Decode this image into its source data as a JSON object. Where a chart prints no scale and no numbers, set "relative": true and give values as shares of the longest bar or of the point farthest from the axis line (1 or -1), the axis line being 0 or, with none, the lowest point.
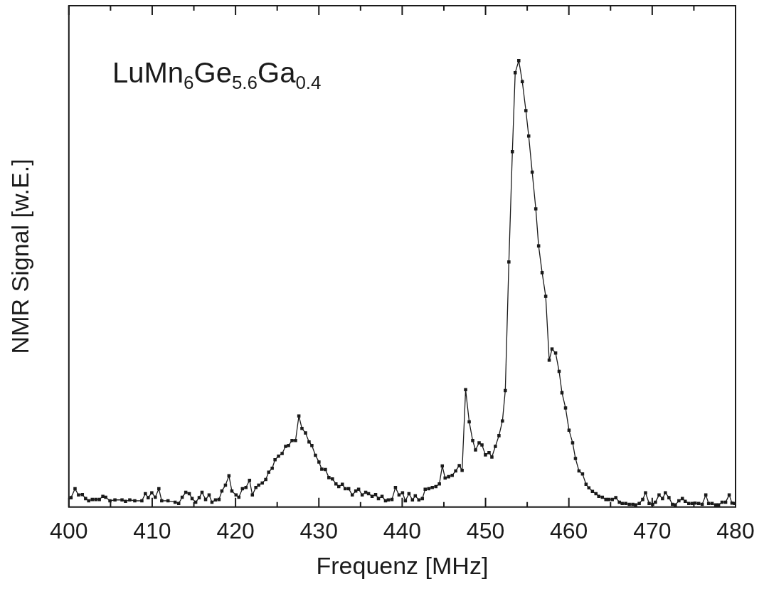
{
  "chart_data": {
    "type": "line",
    "xlabel": "Frequenz [MHz]",
    "ylabel": "NMR Signal [w.E.]",
    "relative": true,
    "marker": "square",
    "line_style": "solid",
    "legend": false,
    "annotations": [
      "LuMn$_{6}$Ge$_{5.6}$Ga$_{0.4}$"
    ],
    "xlim": [
      400,
      480
    ],
    "xticks": [
      400,
      {
        "value": 405,
        "label": null
      },
      410,
      {
        "value": 415,
        "label": null
      },
      420,
      {
        "value": 425,
        "label": null
      },
      430,
      {
        "value": 435,
        "label": null
      },
      440,
      {
        "value": 445,
        "label": null
      },
      450,
      {
        "value": 455,
        "label": null
      },
      460,
      {
        "value": 465,
        "label": null
      },
      470,
      {
        "value": 475,
        "label": null
      },
      480
    ],
    "series": [
      {
        "color": "#1a1a1a",
        "x": [
          400.26,
          400.74,
          401.16,
          401.62,
          402.01,
          402.38,
          402.81,
          403.23,
          403.66,
          404.08,
          404.42,
          404.93,
          405.53,
          406.38,
          406.8,
          407.31,
          407.91,
          408.76,
          409.18,
          409.52,
          409.95,
          410.37,
          410.8,
          411.14,
          411.9,
          412.75,
          413.18,
          413.6,
          414.03,
          414.45,
          414.79,
          415.22,
          415.64,
          415.98,
          416.41,
          416.83,
          417.17,
          417.6,
          418.02,
          418.36,
          418.79,
          419.21,
          419.56,
          420.06,
          420.4,
          420.83,
          421.25,
          421.68,
          422.02,
          422.44,
          422.78,
          423.21,
          423.63,
          423.98,
          424.4,
          424.74,
          425.16,
          425.59,
          426.01,
          426.36,
          426.78,
          427.2,
          427.6,
          427.97,
          428.4,
          428.82,
          429.16,
          429.59,
          430.01,
          430.35,
          430.78,
          431.2,
          431.63,
          432.05,
          432.39,
          432.82,
          433.16,
          433.58,
          434.01,
          434.43,
          434.77,
          435.2,
          435.62,
          435.96,
          436.39,
          436.81,
          437.15,
          437.58,
          438,
          438.34,
          438.77,
          439.19,
          439.62,
          440.04,
          440.38,
          440.81,
          441.23,
          441.57,
          442,
          442.42,
          442.76,
          443.19,
          443.61,
          444.04,
          444.46,
          444.81,
          445.15,
          445.57,
          446,
          446.42,
          446.85,
          447.19,
          447.61,
          448.04,
          448.46,
          448.8,
          449.23,
          449.57,
          449.99,
          450.42,
          450.76,
          451.18,
          451.61,
          452.03,
          452.37,
          452.8,
          453.22,
          453.56,
          453.99,
          454.41,
          454.84,
          455.18,
          455.6,
          456.03,
          456.37,
          456.79,
          457.22,
          457.64,
          457.98,
          458.41,
          458.83,
          459.17,
          459.6,
          460.02,
          460.45,
          460.79,
          461.21,
          461.64,
          462.06,
          462.4,
          462.83,
          463.25,
          463.59,
          464.02,
          464.44,
          464.78,
          465.21,
          465.63,
          466.06,
          466.4,
          466.82,
          467.25,
          467.67,
          468.01,
          468.44,
          468.86,
          469.2,
          469.63,
          470.05,
          470.39,
          470.82,
          471.24,
          471.58,
          472.01,
          472.43,
          472.77,
          473.2,
          473.62,
          473.96,
          474.39,
          474.81,
          475.15,
          475.58,
          476,
          476.43,
          476.77,
          477.19,
          477.62,
          477.96,
          478.38,
          478.81,
          479.24,
          479.57,
          479.91
        ],
        "values": [
          0.021,
          0.041,
          0.027,
          0.028,
          0.019,
          0.014,
          0.017,
          0.017,
          0.017,
          0.024,
          0.022,
          0.014,
          0.016,
          0.016,
          0.013,
          0.016,
          0.014,
          0.014,
          0.03,
          0.021,
          0.032,
          0.022,
          0.041,
          0.014,
          0.014,
          0.011,
          0.008,
          0.022,
          0.033,
          0.03,
          0.019,
          0.011,
          0.021,
          0.033,
          0.017,
          0.027,
          0.011,
          0.016,
          0.017,
          0.036,
          0.049,
          0.07,
          0.036,
          0.027,
          0.022,
          0.041,
          0.044,
          0.06,
          0.027,
          0.044,
          0.049,
          0.054,
          0.062,
          0.078,
          0.087,
          0.106,
          0.114,
          0.12,
          0.136,
          0.138,
          0.149,
          0.149,
          0.204,
          0.176,
          0.166,
          0.146,
          0.138,
          0.116,
          0.101,
          0.085,
          0.084,
          0.066,
          0.063,
          0.052,
          0.046,
          0.051,
          0.041,
          0.041,
          0.027,
          0.036,
          0.04,
          0.027,
          0.033,
          0.03,
          0.024,
          0.028,
          0.019,
          0.024,
          0.014,
          0.016,
          0.017,
          0.044,
          0.027,
          0.032,
          0.014,
          0.03,
          0.016,
          0.025,
          0.016,
          0.019,
          0.04,
          0.041,
          0.044,
          0.046,
          0.052,
          0.092,
          0.065,
          0.068,
          0.071,
          0.081,
          0.093,
          0.082,
          0.263,
          0.191,
          0.149,
          0.128,
          0.144,
          0.139,
          0.117,
          0.122,
          0.112,
          0.136,
          0.16,
          0.193,
          0.261,
          0.549,
          0.796,
          0.973,
          1,
          0.953,
          0.888,
          0.831,
          0.75,
          0.668,
          0.585,
          0.525,
          0.472,
          0.329,
          0.354,
          0.345,
          0.304,
          0.256,
          0.222,
          0.172,
          0.144,
          0.109,
          0.081,
          0.074,
          0.051,
          0.043,
          0.035,
          0.03,
          0.024,
          0.022,
          0.017,
          0.017,
          0.017,
          0.021,
          0.011,
          0.008,
          0.008,
          0.006,
          0.006,
          0.005,
          0.008,
          0.017,
          0.032,
          0.008,
          0.006,
          0.011,
          0.027,
          0.019,
          0.032,
          0.021,
          0.006,
          0.005,
          0.014,
          0.019,
          0.013,
          0.008,
          0.008,
          0.009,
          0.008,
          0.006,
          0.027,
          0.008,
          0.008,
          0.005,
          0.005,
          0.011,
          0.011,
          0.027,
          0.009,
          0.008
        ]
      }
    ]
  }
}
